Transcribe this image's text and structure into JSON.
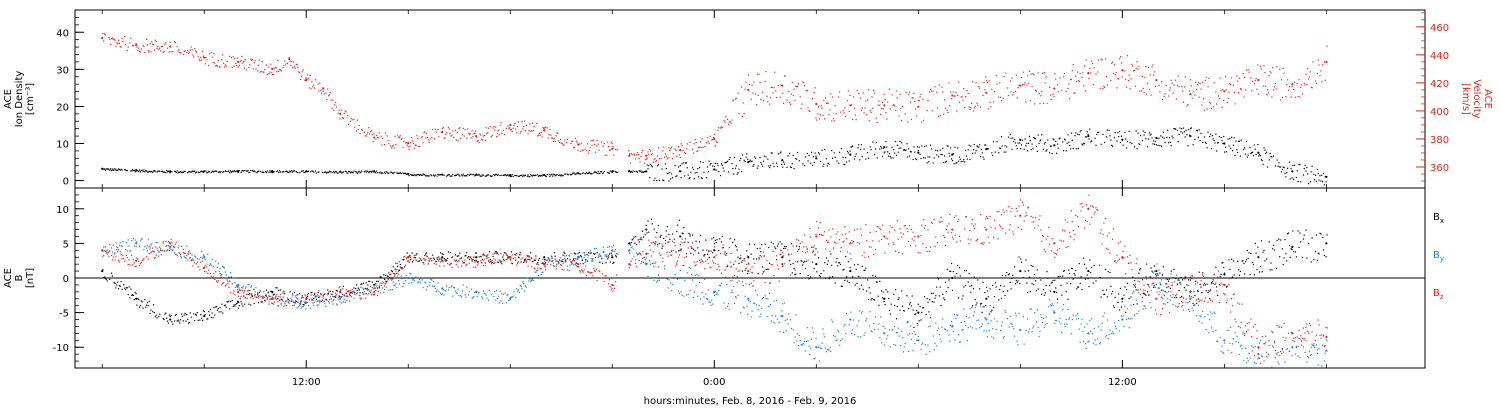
{
  "chart_data": [
    {
      "type": "scatter",
      "left_axis": {
        "label_lines": [
          "ACE",
          "Ion Density",
          "[cm⁻³]"
        ],
        "ylim": [
          -2,
          46
        ],
        "ticks": [
          0,
          10,
          20,
          30,
          40
        ],
        "color": "#000000"
      },
      "right_axis": {
        "label_lines": [
          "ACE",
          "Velocity",
          "[km/s]"
        ],
        "ylim": [
          345,
          472
        ],
        "ticks": [
          360,
          380,
          400,
          420,
          440,
          460
        ],
        "color": "#e0251b"
      },
      "series": [
        {
          "axis": "left",
          "color": "#000000",
          "x": [
            6.0,
            7.0,
            8.0,
            9.0,
            10.0,
            11.0,
            12.0,
            13.0,
            14.0,
            15.0,
            16.0,
            17.0,
            18.0,
            19.0,
            20.0,
            21.0,
            21.5,
            22.0,
            23.0,
            24.0,
            25.0,
            26.0,
            27.0,
            28.0,
            29.0,
            30.0,
            31.0,
            32.0,
            33.0,
            34.0,
            35.0,
            36.0,
            37.0,
            38.0,
            39.0,
            40.0,
            41.0,
            42.0
          ],
          "y": [
            3.2,
            2.8,
            2.5,
            2.5,
            2.6,
            2.6,
            2.5,
            2.4,
            2.5,
            1.8,
            1.6,
            1.6,
            1.5,
            1.5,
            2.0,
            2.5,
            2.6,
            2.5,
            2.5,
            3.0,
            5.0,
            5.5,
            6.0,
            7.0,
            9.0,
            7.5,
            7.0,
            8.5,
            11.0,
            9.5,
            12.0,
            11.0,
            11.5,
            12.0,
            10.0,
            7.5,
            2.5,
            1.0
          ]
        },
        {
          "axis": "right",
          "color": "#e0251b",
          "x": [
            6.0,
            7.0,
            8.0,
            9.0,
            10.0,
            11.0,
            11.5,
            12.0,
            12.5,
            13.0,
            14.0,
            15.0,
            16.0,
            17.0,
            18.0,
            19.0,
            20.0,
            21.0,
            21.5,
            22.0,
            23.0,
            24.0,
            25.0,
            26.0,
            27.0,
            28.0,
            29.0,
            30.0,
            31.0,
            32.0,
            33.0,
            34.0,
            35.0,
            36.0,
            37.0,
            38.0,
            39.0,
            40.0,
            41.0,
            42.0
          ],
          "y": [
            452,
            447,
            446,
            438,
            435,
            430,
            437,
            422,
            416,
            398,
            381,
            377,
            385,
            382,
            390,
            386,
            376,
            373,
            368,
            368,
            372,
            380,
            415,
            418,
            405,
            404,
            404,
            403,
            411,
            413,
            418,
            416,
            427,
            429,
            422,
            412,
            414,
            422,
            419,
            435
          ]
        }
      ]
    },
    {
      "type": "scatter",
      "left_axis": {
        "label_lines": [
          "ACE",
          "B",
          "[nT]"
        ],
        "ylim": [
          -13,
          13
        ],
        "ticks": [
          -10,
          -5,
          0,
          5,
          10
        ]
      },
      "legend_position": "right",
      "series": [
        {
          "name": "B",
          "sub": "x",
          "color": "#000000",
          "x": [
            6.0,
            7.0,
            8.0,
            9.0,
            10.0,
            11.0,
            12.0,
            13.0,
            14.0,
            15.0,
            16.0,
            17.0,
            18.0,
            19.0,
            20.0,
            21.0,
            21.5,
            22.0,
            23.0,
            24.0,
            25.0,
            26.0,
            27.0,
            28.0,
            29.0,
            30.0,
            31.0,
            32.0,
            33.0,
            34.0,
            35.0,
            36.0,
            37.0,
            38.0,
            39.0,
            40.0,
            41.0,
            42.0
          ],
          "y": [
            1.0,
            -3.0,
            -6.0,
            -5.5,
            -3.5,
            -2.0,
            -3.0,
            -2.0,
            -1.0,
            3.0,
            3.0,
            3.0,
            3.0,
            3.0,
            3.0,
            3.0,
            5.0,
            7.0,
            6.0,
            4.0,
            3.0,
            3.0,
            2.0,
            1.0,
            -3.0,
            -5.0,
            0.0,
            -3.0,
            1.0,
            -2.0,
            1.0,
            -3.0,
            1.0,
            -2.0,
            0.5,
            3.0,
            4.5,
            5.0
          ]
        },
        {
          "name": "B",
          "sub": "y",
          "color": "#1a7fd4",
          "x": [
            6.0,
            7.0,
            8.0,
            9.0,
            10.0,
            11.0,
            12.0,
            13.0,
            14.0,
            15.0,
            16.0,
            17.0,
            18.0,
            19.0,
            20.0,
            21.0,
            21.5,
            22.0,
            23.0,
            24.0,
            25.0,
            26.0,
            27.0,
            28.0,
            29.0,
            30.0,
            31.0,
            32.0,
            33.0,
            34.0,
            35.0,
            36.0,
            37.0,
            38.0,
            39.0,
            40.0,
            41.0,
            42.0
          ],
          "y": [
            4.0,
            5.0,
            4.5,
            3.0,
            -1.0,
            -3.0,
            -3.5,
            -3.0,
            -1.5,
            0.0,
            -1.5,
            -2.0,
            -3.0,
            2.0,
            3.0,
            4.0,
            4.0,
            2.0,
            0.0,
            -2.0,
            -3.0,
            -5.5,
            -10.0,
            -6.0,
            -8.0,
            -9.0,
            -7.0,
            -6.0,
            -7.5,
            -5.0,
            -8.0,
            -6.0,
            0.0,
            -3.0,
            -9.0,
            -11.0,
            -10.0,
            -10.5
          ]
        },
        {
          "name": "B",
          "sub": "z",
          "color": "#e0251b",
          "x": [
            6.0,
            7.0,
            8.0,
            9.0,
            10.0,
            11.0,
            12.0,
            13.0,
            14.0,
            15.0,
            16.0,
            17.0,
            18.0,
            19.0,
            20.0,
            21.0,
            21.5,
            22.0,
            23.0,
            24.0,
            25.0,
            26.0,
            27.0,
            28.0,
            29.0,
            30.0,
            31.0,
            32.0,
            33.0,
            34.0,
            35.0,
            36.0,
            37.0,
            38.0,
            39.0,
            40.0,
            41.0,
            42.0
          ],
          "y": [
            4.0,
            2.5,
            5.0,
            1.5,
            -2.0,
            -3.0,
            -3.0,
            -2.0,
            -2.0,
            3.0,
            2.5,
            2.5,
            3.0,
            2.0,
            2.0,
            -1.0,
            2.0,
            3.5,
            4.0,
            3.0,
            1.0,
            2.0,
            6.0,
            5.0,
            6.0,
            6.0,
            7.0,
            7.0,
            9.0,
            5.0,
            10.0,
            3.0,
            -3.0,
            -2.0,
            -1.0,
            -10.0,
            -8.0,
            -8.5
          ]
        }
      ]
    }
  ],
  "x_axis": {
    "range_hours": [
      5.2,
      44.9
    ],
    "major_ticks": [
      {
        "hour": 12,
        "label": "12:00"
      },
      {
        "hour": 24,
        "label": "0:00"
      },
      {
        "hour": 36,
        "label": "12:00"
      }
    ],
    "minor_ticks": [
      6,
      9,
      15,
      18,
      21,
      27,
      30,
      33,
      39,
      42
    ],
    "label": "hours:minutes, Feb.  8, 2016 - Feb.  9, 2016"
  },
  "colors": {
    "black": "#000000",
    "red": "#e0251b",
    "blue": "#1a7fd4"
  }
}
